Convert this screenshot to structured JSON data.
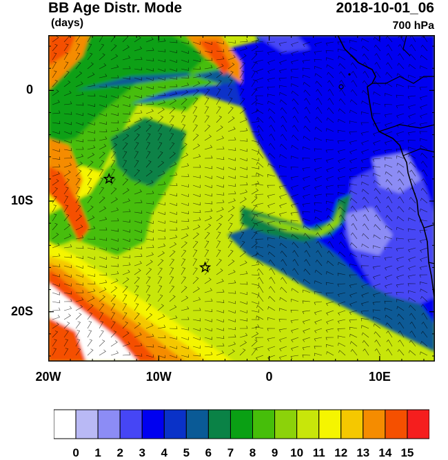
{
  "header": {
    "title": "BB Age Distr. Mode",
    "datetime": "2018-10-01_06",
    "units": "(days)",
    "level": "700 hPa"
  },
  "map": {
    "lon_range": [
      -20,
      15
    ],
    "lat_range": [
      -24.5,
      5
    ],
    "x_axis_ticks": [
      {
        "lon": -20,
        "label": "20W"
      },
      {
        "lon": -10,
        "label": "10W"
      },
      {
        "lon": 0,
        "label": "0"
      },
      {
        "lon": 10,
        "label": "10E"
      }
    ],
    "y_axis_ticks": [
      {
        "lat": 0,
        "label": "0"
      },
      {
        "lat": -10,
        "label": "10S"
      },
      {
        "lat": -20,
        "label": "20S"
      }
    ],
    "markers": [
      {
        "name": "star",
        "lon": -14.5,
        "lat": -8.0
      },
      {
        "name": "star",
        "lon": -5.8,
        "lat": -16.0
      }
    ],
    "wind_barbs": true
  },
  "colorbar": {
    "labels": [
      "0",
      "1",
      "2",
      "3",
      "4",
      "5",
      "6",
      "7",
      "8",
      "9",
      "10",
      "11",
      "12",
      "13",
      "14",
      "15"
    ],
    "colors": [
      "#ffffff",
      "#b9b9f5",
      "#8c8cf5",
      "#4646f5",
      "#0000f0",
      "#0a32c8",
      "#0a5a96",
      "#0a8246",
      "#0aa014",
      "#46be0a",
      "#8cd20a",
      "#c8e60a",
      "#f5f500",
      "#f5c800",
      "#f58c00",
      "#f55000",
      "#f51e1e"
    ]
  }
}
